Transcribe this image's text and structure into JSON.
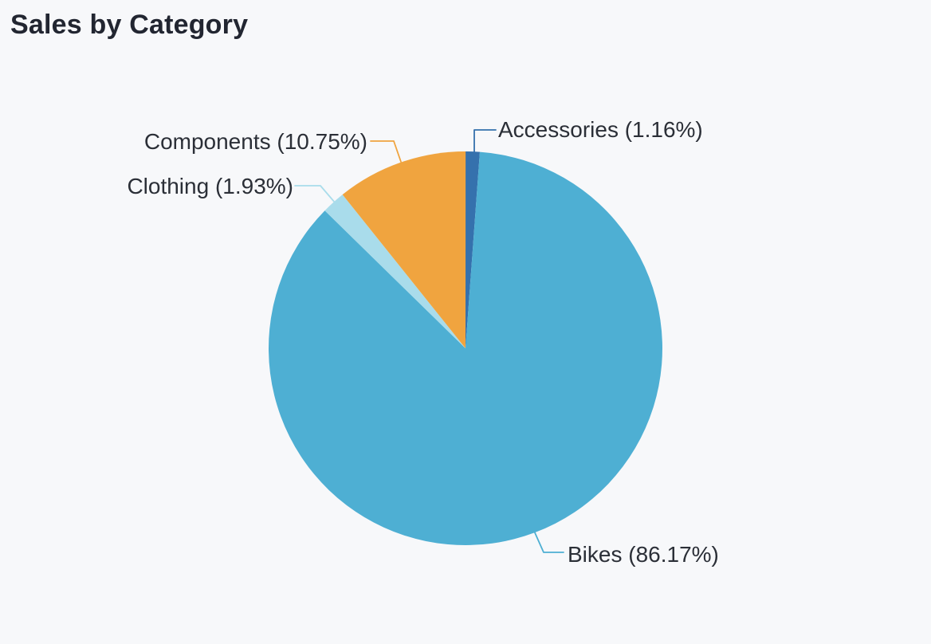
{
  "page": {
    "background_color": "#F7F8FA",
    "title_color": "#222631",
    "label_color": "#2B2F37"
  },
  "chart_data": {
    "type": "pie",
    "title": "Sales by Category",
    "start_angle": "top",
    "direction": "clockwise",
    "legend": "none",
    "label_style": "callout-leader-lines",
    "categories": [
      "Accessories",
      "Bikes",
      "Clothing",
      "Components"
    ],
    "values": [
      1.16,
      86.17,
      1.93,
      10.75
    ],
    "slices": [
      {
        "category": "Accessories",
        "percent": 1.16,
        "label": "Accessories (1.16%)",
        "color": "#3571AD"
      },
      {
        "category": "Bikes",
        "percent": 86.17,
        "label": "Bikes (86.17%)",
        "color": "#4EAFD3"
      },
      {
        "category": "Clothing",
        "percent": 1.93,
        "label": "Clothing (1.93%)",
        "color": "#A9DCEB"
      },
      {
        "category": "Components",
        "percent": 10.75,
        "label": "Components (10.75%)",
        "color": "#F0A43F"
      }
    ]
  }
}
